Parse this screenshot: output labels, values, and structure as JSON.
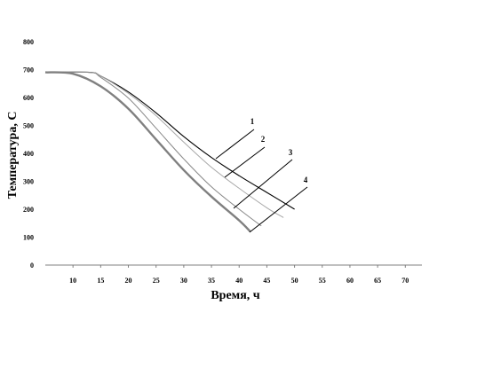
{
  "chart_data": {
    "type": "line",
    "xlabel": "Время, ч",
    "ylabel": "Температура, С",
    "xlim": [
      5,
      73
    ],
    "ylim": [
      0,
      800
    ],
    "x_ticks": [
      "10",
      "15",
      "20",
      "25",
      "30",
      "35",
      "40",
      "45",
      "50",
      "55",
      "60",
      "65",
      "70"
    ],
    "y_ticks": [
      "0",
      "100",
      "200",
      "300",
      "400",
      "500",
      "600",
      "700",
      "800"
    ],
    "grid": false,
    "series": [
      {
        "name": "1",
        "color": "#000000",
        "x": [
          5,
          13,
          15,
          20,
          25,
          30,
          35,
          40,
          45,
          50
        ],
        "y": [
          690,
          690,
          677,
          620,
          545,
          460,
          385,
          320,
          260,
          200
        ]
      },
      {
        "name": "2",
        "color": "#a8a8a8",
        "x": [
          5,
          13,
          15,
          20,
          25,
          30,
          35,
          40,
          45,
          48
        ],
        "y": [
          690,
          690,
          677,
          615,
          535,
          440,
          350,
          275,
          205,
          170
        ]
      },
      {
        "name": "3",
        "color": "#888888",
        "x": [
          5,
          13,
          15,
          20,
          25,
          30,
          35,
          40,
          44
        ],
        "y": [
          690,
          690,
          672,
          598,
          490,
          380,
          280,
          200,
          140
        ]
      },
      {
        "name": "4",
        "color": "#808080",
        "x": [
          5,
          10,
          15,
          20,
          25,
          30,
          35,
          40,
          42
        ],
        "y": [
          690,
          685,
          640,
          560,
          450,
          340,
          245,
          160,
          120
        ]
      }
    ],
    "curve_labels": [
      "1",
      "2",
      "3",
      "4"
    ]
  }
}
